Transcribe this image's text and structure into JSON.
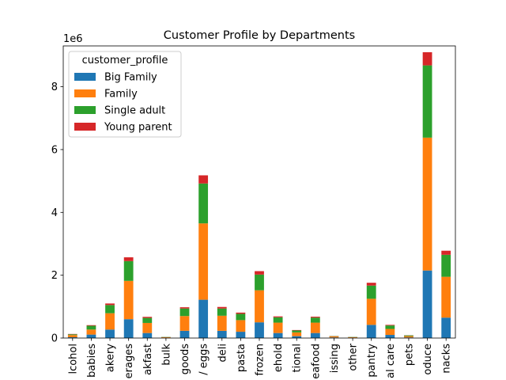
{
  "chart_data": {
    "type": "bar",
    "stacked": true,
    "title": "Customer Profile by Departments",
    "xlabel": "",
    "ylabel": "",
    "offset_text": "1e6",
    "ylim": [
      0,
      9300000
    ],
    "yticks": [
      0,
      2,
      4,
      6,
      8
    ],
    "ytick_scale": 1000000,
    "grid": false,
    "legend": {
      "title": "customer_profile",
      "placement": "top-left"
    },
    "categories": [
      "alcohol",
      "babies",
      "bakery",
      "beverages",
      "breakfast",
      "bulk",
      "canned goods",
      "dairy eggs",
      "deli",
      "dry goods pasta",
      "frozen",
      "household",
      "international",
      "meat seafood",
      "missing",
      "other",
      "pantry",
      "personal care",
      "pets",
      "produce",
      "snacks"
    ],
    "tick_labels": [
      "lcohol",
      "babies",
      "akery",
      "erages",
      "akfast",
      "bulk",
      "goods",
      "/ eggs",
      "deli",
      "pasta",
      "frozen",
      "ehold",
      "tional",
      "eafood",
      "issing",
      "other",
      "pantry",
      "al care",
      "pets",
      "oduce",
      "nacks"
    ],
    "series": [
      {
        "name": "Big Family",
        "color": "#1f77b4",
        "values": [
          25000,
          110000,
          270000,
          600000,
          160000,
          10000,
          230000,
          1220000,
          230000,
          200000,
          500000,
          160000,
          60000,
          160000,
          20000,
          10000,
          420000,
          100000,
          20000,
          2150000,
          650000
        ]
      },
      {
        "name": "Family",
        "color": "#ff7f0e",
        "values": [
          70000,
          160000,
          520000,
          1220000,
          320000,
          15000,
          470000,
          2430000,
          480000,
          370000,
          1020000,
          330000,
          120000,
          330000,
          30000,
          15000,
          830000,
          190000,
          40000,
          4230000,
          1300000
        ]
      },
      {
        "name": "Single adult",
        "color": "#2ca02c",
        "values": [
          25000,
          120000,
          260000,
          630000,
          160000,
          8000,
          240000,
          1270000,
          230000,
          200000,
          500000,
          170000,
          60000,
          160000,
          10000,
          8000,
          420000,
          110000,
          25000,
          2300000,
          700000
        ]
      },
      {
        "name": "Young parent",
        "color": "#d62728",
        "values": [
          10000,
          20000,
          50000,
          120000,
          35000,
          2000,
          40000,
          260000,
          50000,
          40000,
          110000,
          30000,
          15000,
          30000,
          5000,
          2000,
          90000,
          20000,
          5000,
          420000,
          130000
        ]
      }
    ]
  }
}
